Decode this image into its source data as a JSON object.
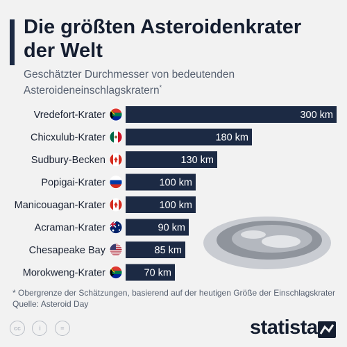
{
  "header": {
    "title": "Die größten Asteroidenkrater der Welt",
    "subtitle": "Geschätzter Durchmesser von bedeutenden Asteroideneinschlagskratern",
    "subtitle_mark": "*"
  },
  "chart_data": {
    "type": "bar",
    "orientation": "horizontal",
    "categories": [
      "Vredefort-Krater",
      "Chicxulub-Krater",
      "Sudbury-Becken",
      "Popigai-Krater",
      "Manicouagan-Krater",
      "Acraman-Krater",
      "Chesapeake Bay",
      "Morokweng-Krater"
    ],
    "values": [
      300,
      180,
      130,
      100,
      100,
      90,
      85,
      70
    ],
    "labels": [
      "300 km",
      "180 km",
      "130 km",
      "100 km",
      "100 km",
      "90 km",
      "85 km",
      "70 km"
    ],
    "flags": [
      "south-africa",
      "mexico",
      "canada",
      "russia",
      "canada",
      "australia",
      "usa",
      "south-africa"
    ],
    "xlim": [
      0,
      300
    ],
    "bar_color": "#1c2a44",
    "grid": false,
    "legend": false
  },
  "footer": {
    "note": "* Obergrenze der Schätzungen, basierend auf der heutigen Größe der Einschlagskrater",
    "source": "Quelle: Asteroid Day",
    "license_icons": [
      "cc",
      "by",
      "nd"
    ],
    "cc_label": "cc",
    "by_label": "i",
    "nd_label": "=",
    "brand": "statista"
  }
}
